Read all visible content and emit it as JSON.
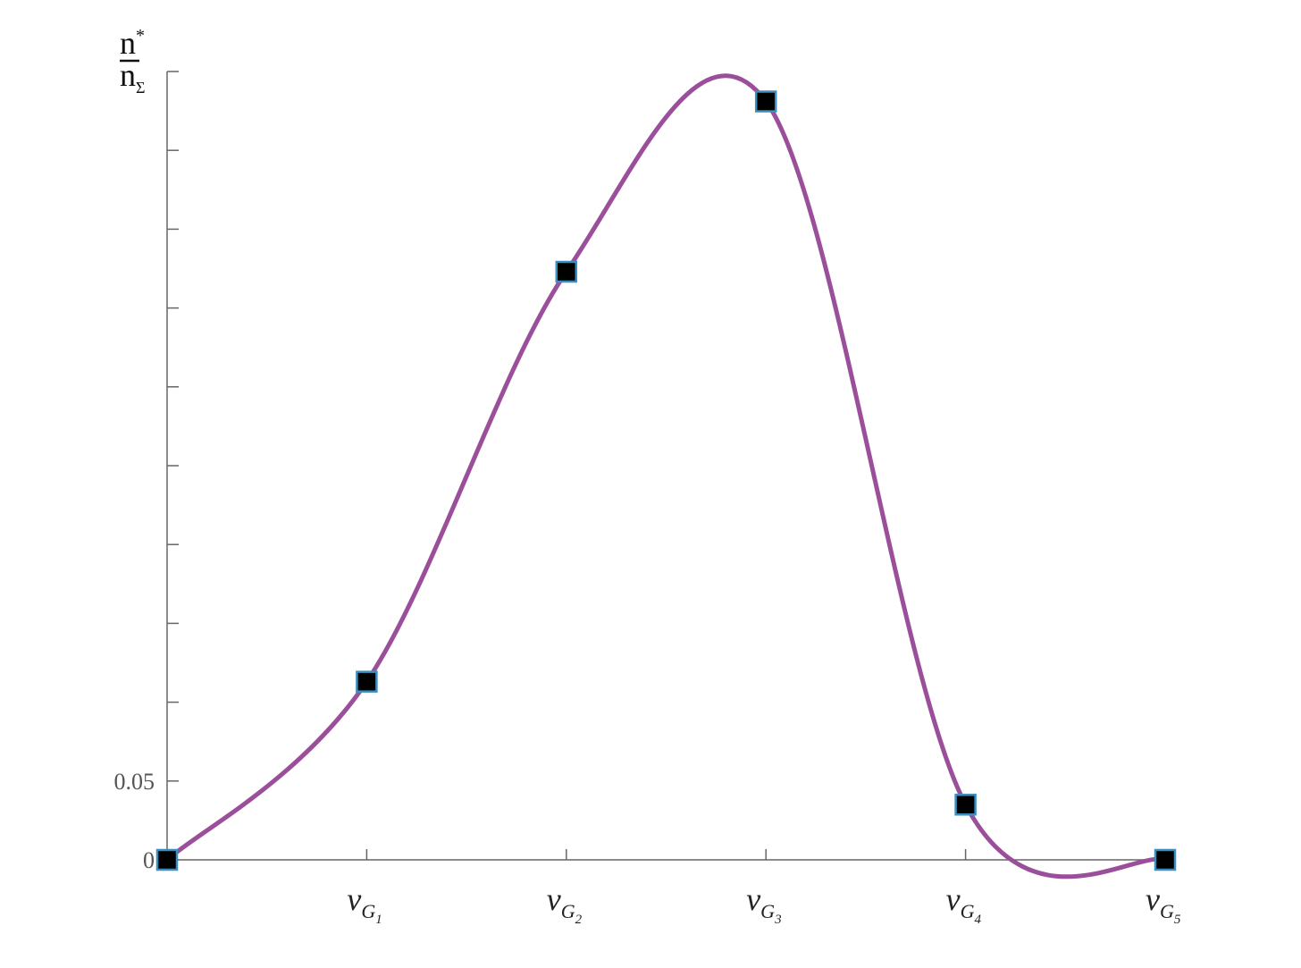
{
  "chart_data": {
    "type": "line",
    "ylabel": {
      "numerator": "n",
      "numerator_sup": "*",
      "denominator": "n",
      "denominator_sub": "Σ"
    },
    "y_tick_labels": [
      {
        "value": 0,
        "label": "0"
      },
      {
        "value": 0.05,
        "label": "0.05"
      }
    ],
    "y_ticks": [
      0,
      0.05,
      0.1,
      0.15,
      0.2,
      0.25,
      0.3,
      0.35,
      0.4,
      0.45,
      0.5
    ],
    "ylim": [
      0,
      0.5
    ],
    "x_tick_labels": [
      {
        "main": "v",
        "sub": "G",
        "subsub": "1"
      },
      {
        "main": "v",
        "sub": "G",
        "subsub": "2"
      },
      {
        "main": "v",
        "sub": "G",
        "subsub": "3"
      },
      {
        "main": "v",
        "sub": "G",
        "subsub": "4"
      },
      {
        "main": "v",
        "sub": "G",
        "subsub": "5"
      }
    ],
    "x": [
      0,
      1,
      2,
      3,
      4,
      5
    ],
    "values": [
      0,
      0.113,
      0.373,
      0.481,
      0.035,
      0
    ],
    "grid": false,
    "line_color": "#9b4f9b",
    "marker": "square",
    "marker_fill": "#000000",
    "marker_edge": "#3a8fc0"
  }
}
